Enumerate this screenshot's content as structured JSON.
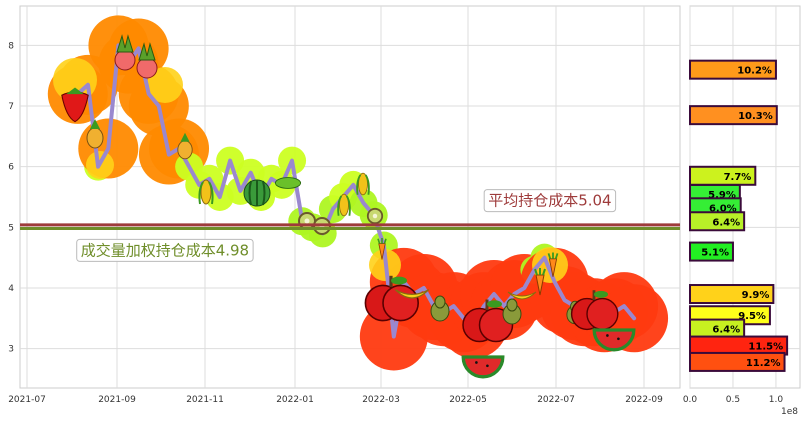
{
  "chart_data": [
    {
      "type": "line",
      "x_ticks": [
        "2021-07",
        "2021-09",
        "2021-11",
        "2022-01",
        "2022-03",
        "2022-05",
        "2022-07",
        "2022-09"
      ],
      "y_ticks": [
        "3",
        "4",
        "5",
        "6",
        "7",
        "8"
      ],
      "ylim": [
        2.35,
        8.65
      ],
      "grid": true,
      "price_series": {
        "x": [
          "2021-08-05",
          "2021-08-12",
          "2021-08-19",
          "2021-08-26",
          "2021-09-02",
          "2021-09-09",
          "2021-09-16",
          "2021-09-23",
          "2021-09-30",
          "2021-10-07",
          "2021-10-14",
          "2021-10-21",
          "2021-10-28",
          "2021-11-04",
          "2021-11-11",
          "2021-11-18",
          "2021-11-25",
          "2021-12-02",
          "2021-12-09",
          "2021-12-16",
          "2021-12-23",
          "2021-12-30",
          "2022-01-06",
          "2022-01-13",
          "2022-01-20",
          "2022-01-27",
          "2022-02-03",
          "2022-02-10",
          "2022-02-17",
          "2022-02-24",
          "2022-03-03",
          "2022-03-10",
          "2022-03-17",
          "2022-03-24",
          "2022-03-31",
          "2022-04-07",
          "2022-04-14",
          "2022-04-21",
          "2022-04-28",
          "2022-05-05",
          "2022-05-12",
          "2022-05-19",
          "2022-05-26",
          "2022-06-02",
          "2022-06-09",
          "2022-06-16",
          "2022-06-23",
          "2022-06-30",
          "2022-07-07",
          "2022-07-14",
          "2022-07-21",
          "2022-07-28",
          "2022-08-04",
          "2022-08-11",
          "2022-08-18",
          "2022-08-25"
        ],
        "y": [
          7.2,
          7.35,
          6.0,
          6.3,
          8.0,
          7.7,
          7.95,
          7.2,
          7.0,
          6.2,
          6.3,
          6.0,
          5.7,
          5.8,
          5.5,
          6.1,
          5.6,
          5.9,
          5.5,
          5.8,
          5.7,
          6.1,
          5.1,
          5.0,
          4.9,
          5.3,
          5.5,
          5.7,
          5.4,
          5.2,
          4.7,
          3.2,
          4.1,
          3.9,
          4.0,
          3.7,
          3.6,
          3.7,
          3.5,
          3.4,
          3.7,
          3.9,
          3.7,
          3.9,
          4.0,
          4.3,
          4.5,
          4.1,
          3.8,
          3.7,
          3.6,
          3.6,
          3.5,
          3.6,
          3.7,
          3.5
        ],
        "color": "#9a88cf"
      },
      "lines": [
        {
          "name": "平均持仓成本5.04",
          "y": 5.04,
          "color": "#9e3b3b"
        },
        {
          "name": "成交量加权持仓成本4.98",
          "y": 4.98,
          "color": "#6f8e2a"
        }
      ],
      "annotations": [
        {
          "text": "平均持仓成本5.04",
          "color": "#9e3b3b",
          "x": "2022-05-15",
          "y": 5.44
        },
        {
          "text": "成交量加权持仓成本4.98",
          "color": "#6f8e2a",
          "x": "2021-08-07",
          "y": 4.62
        }
      ]
    },
    {
      "type": "bar",
      "orientation": "horizontal",
      "x_ticks": [
        "0.0",
        "0.5",
        "1.0"
      ],
      "x_scale_label": "1e8",
      "xlim": [
        0,
        1.28
      ],
      "shared_ylim": [
        2.35,
        8.65
      ],
      "bars": [
        {
          "price": 7.6,
          "value": 1.0,
          "label": "10.2%",
          "color": "#ff9a1a"
        },
        {
          "price": 6.85,
          "value": 1.01,
          "label": "10.3%",
          "color": "#ff9020"
        },
        {
          "price": 5.85,
          "value": 0.76,
          "label": "7.7%",
          "color": "#ccf21e"
        },
        {
          "price": 5.55,
          "value": 0.58,
          "label": "5.9%",
          "color": "#35ee35"
        },
        {
          "price": 5.33,
          "value": 0.59,
          "label": "6.0%",
          "color": "#35ee35"
        },
        {
          "price": 5.1,
          "value": 0.63,
          "label": "6.4%",
          "color": "#b8f028"
        },
        {
          "price": 4.6,
          "value": 0.5,
          "label": "5.1%",
          "color": "#22ee22"
        },
        {
          "price": 3.9,
          "value": 0.97,
          "label": "9.9%",
          "color": "#ffd21a"
        },
        {
          "price": 3.55,
          "value": 0.93,
          "label": "9.5%",
          "color": "#ffff1a"
        },
        {
          "price": 3.33,
          "value": 0.63,
          "label": "6.4%",
          "color": "#c7f020"
        },
        {
          "price": 3.05,
          "value": 1.13,
          "label": "11.5%",
          "color": "#ff2410"
        },
        {
          "price": 2.78,
          "value": 1.1,
          "label": "11.2%",
          "color": "#ff5010"
        }
      ]
    }
  ]
}
